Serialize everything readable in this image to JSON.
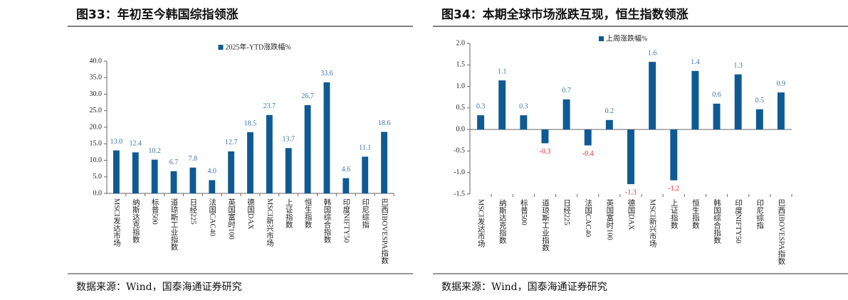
{
  "chart_data": [
    {
      "type": "bar",
      "title": "图33：年初至今韩国综指领涨",
      "legend": "2025年-YTD涨跌幅%",
      "categories": [
        "MSCI发达市场",
        "纳斯达克指数",
        "标普500",
        "道琼斯工业指数",
        "日经225",
        "法国CAC40",
        "英国富时100",
        "德国DAX",
        "MSCI新兴市场",
        "上证指数",
        "恒生指数",
        "韩国综合指数",
        "印度NIFTY50",
        "印尼综指",
        "巴西IBOVESPA指数"
      ],
      "values": [
        13.0,
        12.4,
        10.2,
        6.7,
        7.8,
        4.0,
        12.7,
        18.5,
        23.7,
        13.7,
        26.7,
        33.6,
        4.6,
        11.1,
        18.6
      ],
      "value_labels": [
        "13.0",
        "12.4",
        "10.2",
        "6.7",
        "7.8",
        "4.0",
        "12.7",
        "18.5",
        "23.7",
        "13.7",
        "26.7",
        "33.6",
        "4.6",
        "11.1",
        "18.6"
      ],
      "color": "#0f5a93",
      "label_color": "#3b73ad",
      "negative_label_color": "#e8262b",
      "ylim": [
        0,
        40
      ],
      "yticks": [
        {
          "value": 0,
          "label": "0.0"
        },
        {
          "value": 5,
          "label": "5.0"
        },
        {
          "value": 10,
          "label": "10.0"
        },
        {
          "value": 15,
          "label": "15.0"
        },
        {
          "value": 20,
          "label": "20.0"
        },
        {
          "value": 25,
          "label": "25.0"
        },
        {
          "value": 30,
          "label": "30.0"
        },
        {
          "value": 35,
          "label": "35.0"
        },
        {
          "value": 40,
          "label": "40.0"
        }
      ],
      "grid": false,
      "source": "数据来源：Wind，国泰海通证券研究"
    },
    {
      "type": "bar",
      "title": "图34：本期全球市场涨跌互现，恒生指数领涨",
      "legend": "上周涨跌幅%",
      "categories": [
        "MSCI发达市场",
        "纳斯达克指数",
        "标普500",
        "道琼斯工业指数",
        "日经225",
        "法国CAC40",
        "英国富时100",
        "德国DAX",
        "MSCI新兴市场",
        "上证指数",
        "恒生指数",
        "韩国综合指数",
        "印度NIFTY50",
        "印尼综指",
        "巴西IBOVESPA指数"
      ],
      "values": [
        0.33,
        1.14,
        0.33,
        -0.32,
        0.7,
        -0.37,
        0.22,
        -1.27,
        1.57,
        -1.18,
        1.36,
        0.6,
        1.28,
        0.47,
        0.86
      ],
      "value_labels": [
        "0.3",
        "1.1",
        "0.3",
        "-0.3",
        "0.7",
        "-0.4",
        "0.2",
        "-1.3",
        "1.6",
        "-1.2",
        "1.4",
        "0.6",
        "1.3",
        "0.5",
        "0.9"
      ],
      "color": "#0f5a93",
      "label_color": "#3b73ad",
      "negative_label_color": "#e8262b",
      "ylim": [
        -1.5,
        2.0
      ],
      "yticks": [
        {
          "value": -1.5,
          "label": "-1.5"
        },
        {
          "value": -1,
          "label": "-1.0"
        },
        {
          "value": -0.5,
          "label": "-0.5"
        },
        {
          "value": 0,
          "label": "0.0"
        },
        {
          "value": 0.5,
          "label": "0.5"
        },
        {
          "value": 1,
          "label": "1.0"
        },
        {
          "value": 1.5,
          "label": "1.5"
        },
        {
          "value": 2,
          "label": "2.0"
        }
      ],
      "grid": false,
      "source": "数据来源：Wind，国泰海通证券研究"
    }
  ]
}
